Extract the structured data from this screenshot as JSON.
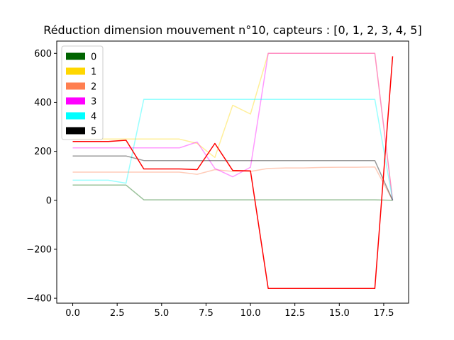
{
  "chart_data": {
    "type": "line",
    "title": "Réduction dimension mouvement n°10, capteurs : [0, 1, 2, 3, 4, 5]",
    "xlabel": "",
    "ylabel": "",
    "xlim": [
      -0.9,
      18.9
    ],
    "ylim": [
      -420,
      650
    ],
    "x_ticks": [
      0.0,
      2.5,
      5.0,
      7.5,
      10.0,
      12.5,
      15.0,
      17.5
    ],
    "x_tick_labels": [
      "0.0",
      "2.5",
      "5.0",
      "7.5",
      "10.0",
      "12.5",
      "15.0",
      "17.5"
    ],
    "y_ticks": [
      -400,
      -200,
      0,
      200,
      400,
      600
    ],
    "y_tick_labels": [
      "−400",
      "−200",
      "0",
      "200",
      "400",
      "600"
    ],
    "grid": false,
    "legend_position": "top-left",
    "x": [
      0,
      1,
      2,
      3,
      4,
      5,
      6,
      7,
      8,
      9,
      10,
      11,
      12,
      13,
      14,
      15,
      16,
      17,
      18
    ],
    "series": [
      {
        "name": "0",
        "color": "#006400",
        "opacity": 0.4,
        "values": [
          62,
          62,
          62,
          62,
          2,
          2,
          2,
          2,
          2,
          2,
          2,
          2,
          2,
          2,
          2,
          2,
          2,
          2,
          0
        ]
      },
      {
        "name": "1",
        "color": "#FFD700",
        "opacity": 0.4,
        "values": [
          250,
          250,
          250,
          250,
          250,
          250,
          250,
          232,
          175,
          388,
          352,
          600,
          600,
          600,
          600,
          600,
          600,
          600,
          0
        ]
      },
      {
        "name": "2",
        "color": "#FF7F50",
        "opacity": 0.4,
        "values": [
          115,
          115,
          115,
          115,
          115,
          115,
          115,
          106,
          125,
          118,
          118,
          130,
          132,
          132,
          134,
          135,
          135,
          136,
          0
        ]
      },
      {
        "name": "3",
        "color": "#FF00FF",
        "opacity": 0.4,
        "values": [
          214,
          214,
          214,
          214,
          214,
          214,
          214,
          238,
          130,
          96,
          135,
          600,
          600,
          600,
          600,
          600,
          600,
          600,
          0
        ]
      },
      {
        "name": "4",
        "color": "#00FFFF",
        "opacity": 0.4,
        "values": [
          82,
          82,
          82,
          70,
          412,
          412,
          412,
          412,
          412,
          412,
          412,
          412,
          412,
          412,
          412,
          412,
          412,
          412,
          0
        ]
      },
      {
        "name": "5",
        "color": "#000000",
        "opacity": 0.4,
        "values": [
          181,
          181,
          181,
          181,
          162,
          162,
          162,
          162,
          162,
          162,
          162,
          162,
          162,
          162,
          162,
          162,
          162,
          162,
          0
        ]
      },
      {
        "name": "",
        "color": "#FF0000",
        "opacity": 1.0,
        "values": [
          240,
          240,
          240,
          245,
          128,
          128,
          128,
          125,
          232,
          122,
          120,
          -360,
          -360,
          -360,
          -360,
          -360,
          -360,
          -360,
          588
        ]
      }
    ]
  }
}
